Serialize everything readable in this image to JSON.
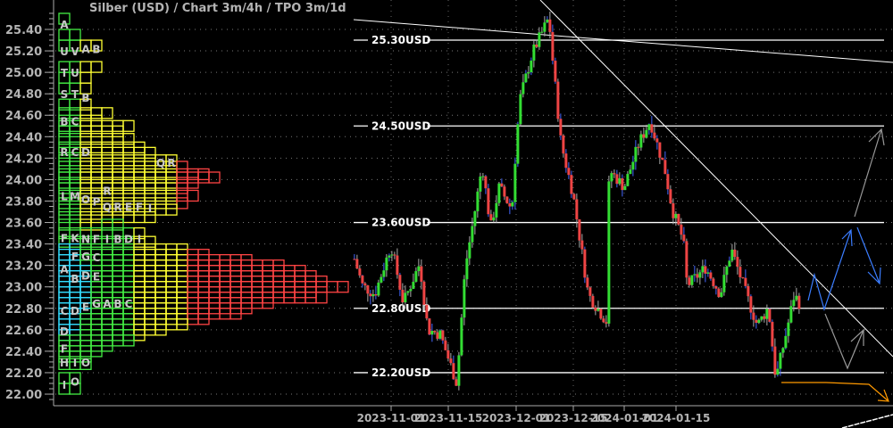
{
  "chart_data": {
    "type": "candlestick",
    "title": "Silber (USD) /  Chart 3m/4h / TPO 3m/1d",
    "yaxis": {
      "ticks": [
        "22.00",
        "22.20",
        "22.40",
        "22.60",
        "22.80",
        "23.00",
        "23.20",
        "23.40",
        "23.60",
        "23.80",
        "24.00",
        "24.20",
        "24.40",
        "24.60",
        "24.80",
        "25.00",
        "25.20",
        "25.40"
      ],
      "range": [
        21.95,
        25.6
      ]
    },
    "xaxis": {
      "ticks": [
        "2023-11-01",
        "2023-11-15",
        "2023-12-01",
        "2023-12-15",
        "2024-01-01",
        "2024-01-15"
      ]
    },
    "grid": true,
    "colors": {
      "up": "#33dd33",
      "down": "#ee4444",
      "wick": "#aaaaaa",
      "level": "#ffffff",
      "projection_blue": "#3b7dff",
      "projection_gray": "#999999",
      "projection_orange": "#ff9900",
      "tpo_green": "#44ee44",
      "tpo_cyan": "#33ddff",
      "tpo_yellow": "#ffff33",
      "tpo_red": "#ff4444"
    },
    "price_path": [
      [
        "2023-10-23",
        23.26
      ],
      [
        "2023-10-25",
        23.01
      ],
      [
        "2023-10-28",
        22.93
      ],
      [
        "2023-11-01",
        23.39
      ],
      [
        "2023-11-04",
        22.85
      ],
      [
        "2023-11-08",
        23.22
      ],
      [
        "2023-11-10",
        22.6
      ],
      [
        "2023-11-13",
        22.56
      ],
      [
        "2023-11-17",
        22.1
      ],
      [
        "2023-11-19",
        23.18
      ],
      [
        "2023-11-21",
        23.64
      ],
      [
        "2023-11-23",
        24.14
      ],
      [
        "2023-11-25",
        23.55
      ],
      [
        "2023-11-27",
        23.93
      ],
      [
        "2023-11-30",
        23.72
      ],
      [
        "2023-12-01",
        24.34
      ],
      [
        "2023-12-02",
        24.76
      ],
      [
        "2023-12-05",
        25.18
      ],
      [
        "2023-12-09",
        25.51
      ],
      [
        "2023-12-10",
        25.09
      ],
      [
        "2023-12-12",
        24.34
      ],
      [
        "2023-12-15",
        23.85
      ],
      [
        "2023-12-20",
        22.93
      ],
      [
        "2023-12-26",
        22.68
      ],
      [
        "2023-12-27",
        24.09
      ],
      [
        "2024-01-01",
        23.93
      ],
      [
        "2024-01-05",
        24.34
      ],
      [
        "2024-01-08",
        24.55
      ],
      [
        "2024-01-12",
        24.09
      ],
      [
        "2024-01-14",
        23.72
      ],
      [
        "2024-01-17",
        23.43
      ],
      [
        "2024-01-18",
        23.01
      ],
      [
        "2024-01-23",
        23.18
      ],
      [
        "2024-01-27",
        22.93
      ],
      [
        "2024-01-30",
        23.35
      ],
      [
        "2024-02-03",
        22.93
      ],
      [
        "2024-02-06",
        22.64
      ],
      [
        "2024-02-09",
        22.81
      ],
      [
        "2024-02-11",
        22.14
      ],
      [
        "2024-02-14",
        22.6
      ],
      [
        "2024-02-16",
        22.93
      ],
      [
        "2024-02-18",
        22.81
      ]
    ],
    "levels": [
      {
        "price": 25.3,
        "label": "25.30USD"
      },
      {
        "price": 24.5,
        "label": "24.50USD"
      },
      {
        "price": 23.6,
        "label": "23.60USD"
      },
      {
        "price": 22.8,
        "label": "22.80USD"
      },
      {
        "price": 22.2,
        "label": "22.20USD"
      }
    ],
    "tpo_profile": [
      [
        25.5,
        1
      ],
      [
        25.35,
        2
      ],
      [
        25.25,
        4
      ],
      [
        25.05,
        4
      ],
      [
        24.95,
        3
      ],
      [
        24.85,
        3
      ],
      [
        24.7,
        3
      ],
      [
        24.62,
        5
      ],
      [
        24.55,
        4
      ],
      [
        24.5,
        7
      ],
      [
        24.45,
        6
      ],
      [
        24.38,
        7
      ],
      [
        24.3,
        8
      ],
      [
        24.25,
        9
      ],
      [
        24.18,
        11
      ],
      [
        24.12,
        12
      ],
      [
        24.05,
        14
      ],
      [
        24.02,
        15
      ],
      [
        23.97,
        13
      ],
      [
        23.92,
        12
      ],
      [
        23.85,
        13
      ],
      [
        23.78,
        12
      ],
      [
        23.72,
        11
      ],
      [
        23.65,
        9
      ],
      [
        23.58,
        6
      ],
      [
        23.5,
        8
      ],
      [
        23.42,
        9
      ],
      [
        23.35,
        12
      ],
      [
        23.3,
        14
      ],
      [
        23.25,
        18
      ],
      [
        23.2,
        21
      ],
      [
        23.15,
        23
      ],
      [
        23.1,
        24
      ],
      [
        23.05,
        25
      ],
      [
        23.0,
        27
      ],
      [
        22.95,
        24
      ],
      [
        22.9,
        25
      ],
      [
        22.85,
        20
      ],
      [
        22.8,
        18
      ],
      [
        22.75,
        17
      ],
      [
        22.7,
        14
      ],
      [
        22.65,
        12
      ],
      [
        22.6,
        10
      ],
      [
        22.55,
        8
      ],
      [
        22.5,
        7
      ],
      [
        22.45,
        5
      ],
      [
        22.4,
        4
      ],
      [
        22.35,
        3
      ],
      [
        22.28,
        3
      ],
      [
        22.15,
        2
      ],
      [
        22.05,
        2
      ]
    ],
    "tpo_letters": [
      [
        "A",
        25.45,
        0
      ],
      [
        "U",
        25.2,
        0
      ],
      [
        "V",
        25.2,
        1
      ],
      [
        "A",
        25.22,
        2
      ],
      [
        "B",
        25.22,
        3
      ],
      [
        "T",
        25.0,
        0
      ],
      [
        "U",
        25.0,
        1
      ],
      [
        "S",
        24.8,
        0
      ],
      [
        "T",
        24.8,
        1
      ],
      [
        "B",
        24.77,
        2
      ],
      [
        "B",
        24.55,
        0
      ],
      [
        "C",
        24.55,
        1
      ],
      [
        "R",
        24.26,
        0
      ],
      [
        "C",
        24.26,
        1
      ],
      [
        "D",
        24.26,
        2
      ],
      [
        "Q",
        24.16,
        9
      ],
      [
        "R",
        24.16,
        10
      ],
      [
        "L",
        23.85,
        0
      ],
      [
        "M",
        23.85,
        1
      ],
      [
        "O",
        23.82,
        2
      ],
      [
        "P",
        23.8,
        3
      ],
      [
        "R",
        23.9,
        4
      ],
      [
        "Q",
        23.75,
        4
      ],
      [
        "R",
        23.75,
        5
      ],
      [
        "E",
        23.75,
        6
      ],
      [
        "F",
        23.75,
        7
      ],
      [
        "I",
        23.74,
        8
      ],
      [
        "F",
        23.46,
        0
      ],
      [
        "K",
        23.46,
        1
      ],
      [
        "N",
        23.45,
        2
      ],
      [
        "F",
        23.45,
        3
      ],
      [
        "I",
        23.45,
        4
      ],
      [
        "B",
        23.45,
        5
      ],
      [
        "D",
        23.45,
        6
      ],
      [
        "I",
        23.45,
        7
      ],
      [
        "A",
        23.17,
        0
      ],
      [
        "F",
        23.29,
        1
      ],
      [
        "G",
        23.29,
        2
      ],
      [
        "C",
        23.28,
        3
      ],
      [
        "B",
        23.08,
        1
      ],
      [
        "D",
        23.11,
        2
      ],
      [
        "E",
        23.1,
        3
      ],
      [
        "C",
        22.78,
        0
      ],
      [
        "D",
        22.78,
        1
      ],
      [
        "E",
        22.82,
        2
      ],
      [
        "G",
        22.85,
        3
      ],
      [
        "A",
        22.85,
        4
      ],
      [
        "B",
        22.85,
        5
      ],
      [
        "C",
        22.85,
        6
      ],
      [
        "D",
        22.59,
        0
      ],
      [
        "F",
        22.43,
        0
      ],
      [
        "H",
        22.3,
        0
      ],
      [
        "I",
        22.3,
        1
      ],
      [
        "O",
        22.3,
        2
      ],
      [
        "I",
        22.09,
        0
      ],
      [
        "O",
        22.12,
        1
      ]
    ]
  }
}
